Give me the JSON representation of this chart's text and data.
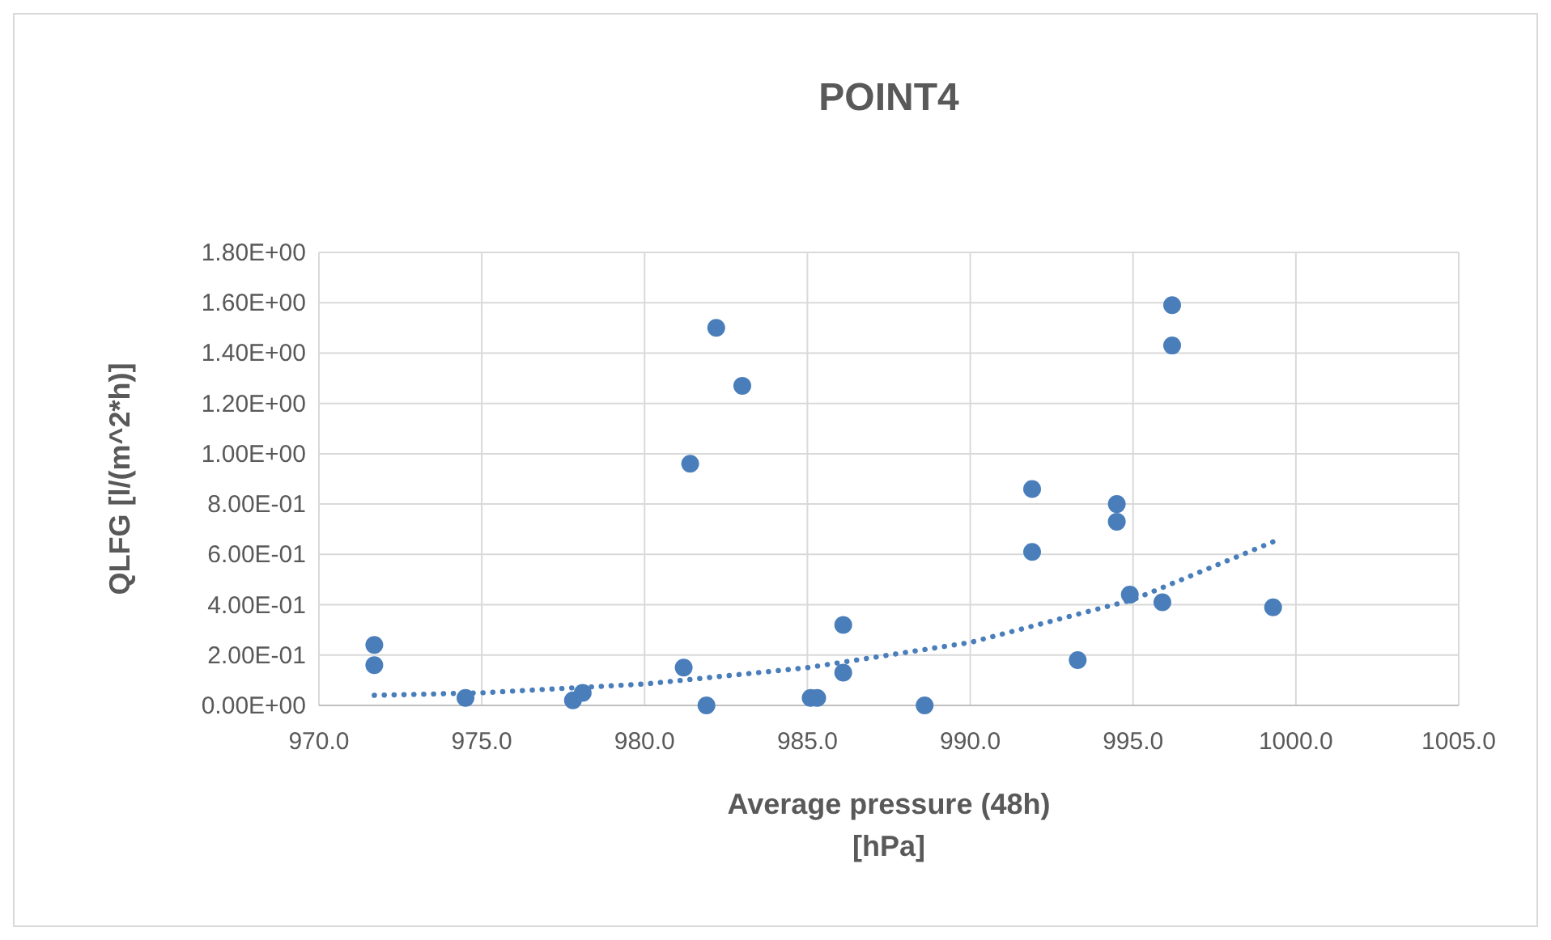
{
  "chart_data": {
    "type": "scatter",
    "title": "POINT4",
    "xlabel": "Average pressure (48h)\n[hPa]",
    "ylabel": "QLFG [l/(m^2*h)]",
    "xlim": [
      970,
      1005
    ],
    "xticks": [
      {
        "value": 970,
        "label": "970.0"
      },
      {
        "value": 975,
        "label": "975.0"
      },
      {
        "value": 980,
        "label": "980.0"
      },
      {
        "value": 985,
        "label": "985.0"
      },
      {
        "value": 990,
        "label": "990.0"
      },
      {
        "value": 995,
        "label": "995.0"
      },
      {
        "value": 1000,
        "label": "1000.0"
      },
      {
        "value": 1005,
        "label": "1005.0"
      }
    ],
    "ylim": [
      0,
      1.8
    ],
    "yticks": [
      {
        "value": 0,
        "label": "0.00E+00"
      },
      {
        "value": 0.2,
        "label": "2.00E-01"
      },
      {
        "value": 0.4,
        "label": "4.00E-01"
      },
      {
        "value": 0.6,
        "label": "6.00E-01"
      },
      {
        "value": 0.8,
        "label": "8.00E-01"
      },
      {
        "value": 1,
        "label": "1.00E+00"
      },
      {
        "value": 1.2,
        "label": "1.20E+00"
      },
      {
        "value": 1.4,
        "label": "1.40E+00"
      },
      {
        "value": 1.6,
        "label": "1.60E+00"
      },
      {
        "value": 1.8,
        "label": "1.80E+00"
      }
    ],
    "grid": true,
    "series": [
      {
        "color": "#4a7ebb",
        "marker": "circle",
        "x": [
          971.7,
          971.7,
          974.5,
          977.8,
          978.1,
          981.2,
          981.4,
          981.9,
          982.2,
          983.0,
          985.1,
          985.3,
          986.1,
          986.1,
          988.6,
          991.9,
          991.9,
          993.3,
          994.5,
          994.5,
          994.9,
          995.9,
          996.2,
          996.2,
          999.3
        ],
        "values": [
          0.24,
          0.16,
          0.03,
          0.02,
          0.05,
          0.15,
          0.96,
          0.0,
          1.5,
          1.27,
          0.03,
          0.03,
          0.32,
          0.13,
          0.0,
          0.86,
          0.61,
          0.18,
          0.8,
          0.73,
          0.44,
          0.41,
          1.59,
          1.43,
          0.39
        ]
      },
      {
        "type": "line",
        "color": "#4a7ebb",
        "line_style": "dotted",
        "x": [
          971.7,
          975,
          980,
          985,
          990,
          995,
          999.3
        ],
        "values": [
          0.04,
          0.05,
          0.085,
          0.15,
          0.25,
          0.42,
          0.65
        ]
      }
    ]
  }
}
